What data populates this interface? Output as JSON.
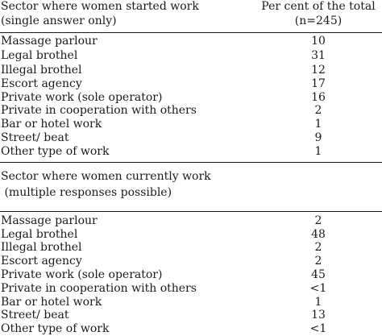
{
  "header": {
    "sector_line1": "Sector where women started work",
    "sector_line2": "(single answer only)",
    "percent_line1": "Per cent of the total",
    "percent_line2": "(n=245)"
  },
  "started_rows": [
    {
      "label": "Massage parlour",
      "value": "10"
    },
    {
      "label": "Legal brothel",
      "value": "31"
    },
    {
      "label": "Illegal brothel",
      "value": "12"
    },
    {
      "label": "Escort agency",
      "value": "17"
    },
    {
      "label": "Private work (sole operator)",
      "value": "16"
    },
    {
      "label": "Private in cooperation with others",
      "value": "2"
    },
    {
      "label": "Bar or hotel work",
      "value": "1"
    },
    {
      "label": "Street/ beat",
      "value": "9"
    },
    {
      "label": "Other type of work",
      "value": "1"
    }
  ],
  "current_header": {
    "line1": "Sector where women currently work",
    "line2": " (multiple responses possible)"
  },
  "current_rows": [
    {
      "label": "Massage parlour",
      "value": "2"
    },
    {
      "label": "Legal brothel",
      "value": "48"
    },
    {
      "label": "Illegal brothel",
      "value": "2"
    },
    {
      "label": "Escort agency",
      "value": "2"
    },
    {
      "label": "Private work (sole operator)",
      "value": "45"
    },
    {
      "label": "Private in cooperation with others",
      "value": "<1"
    },
    {
      "label": "Bar or hotel work",
      "value": "1"
    },
    {
      "label": "Street/ beat",
      "value": "13"
    },
    {
      "label": "Other type of work",
      "value": "<1"
    }
  ]
}
